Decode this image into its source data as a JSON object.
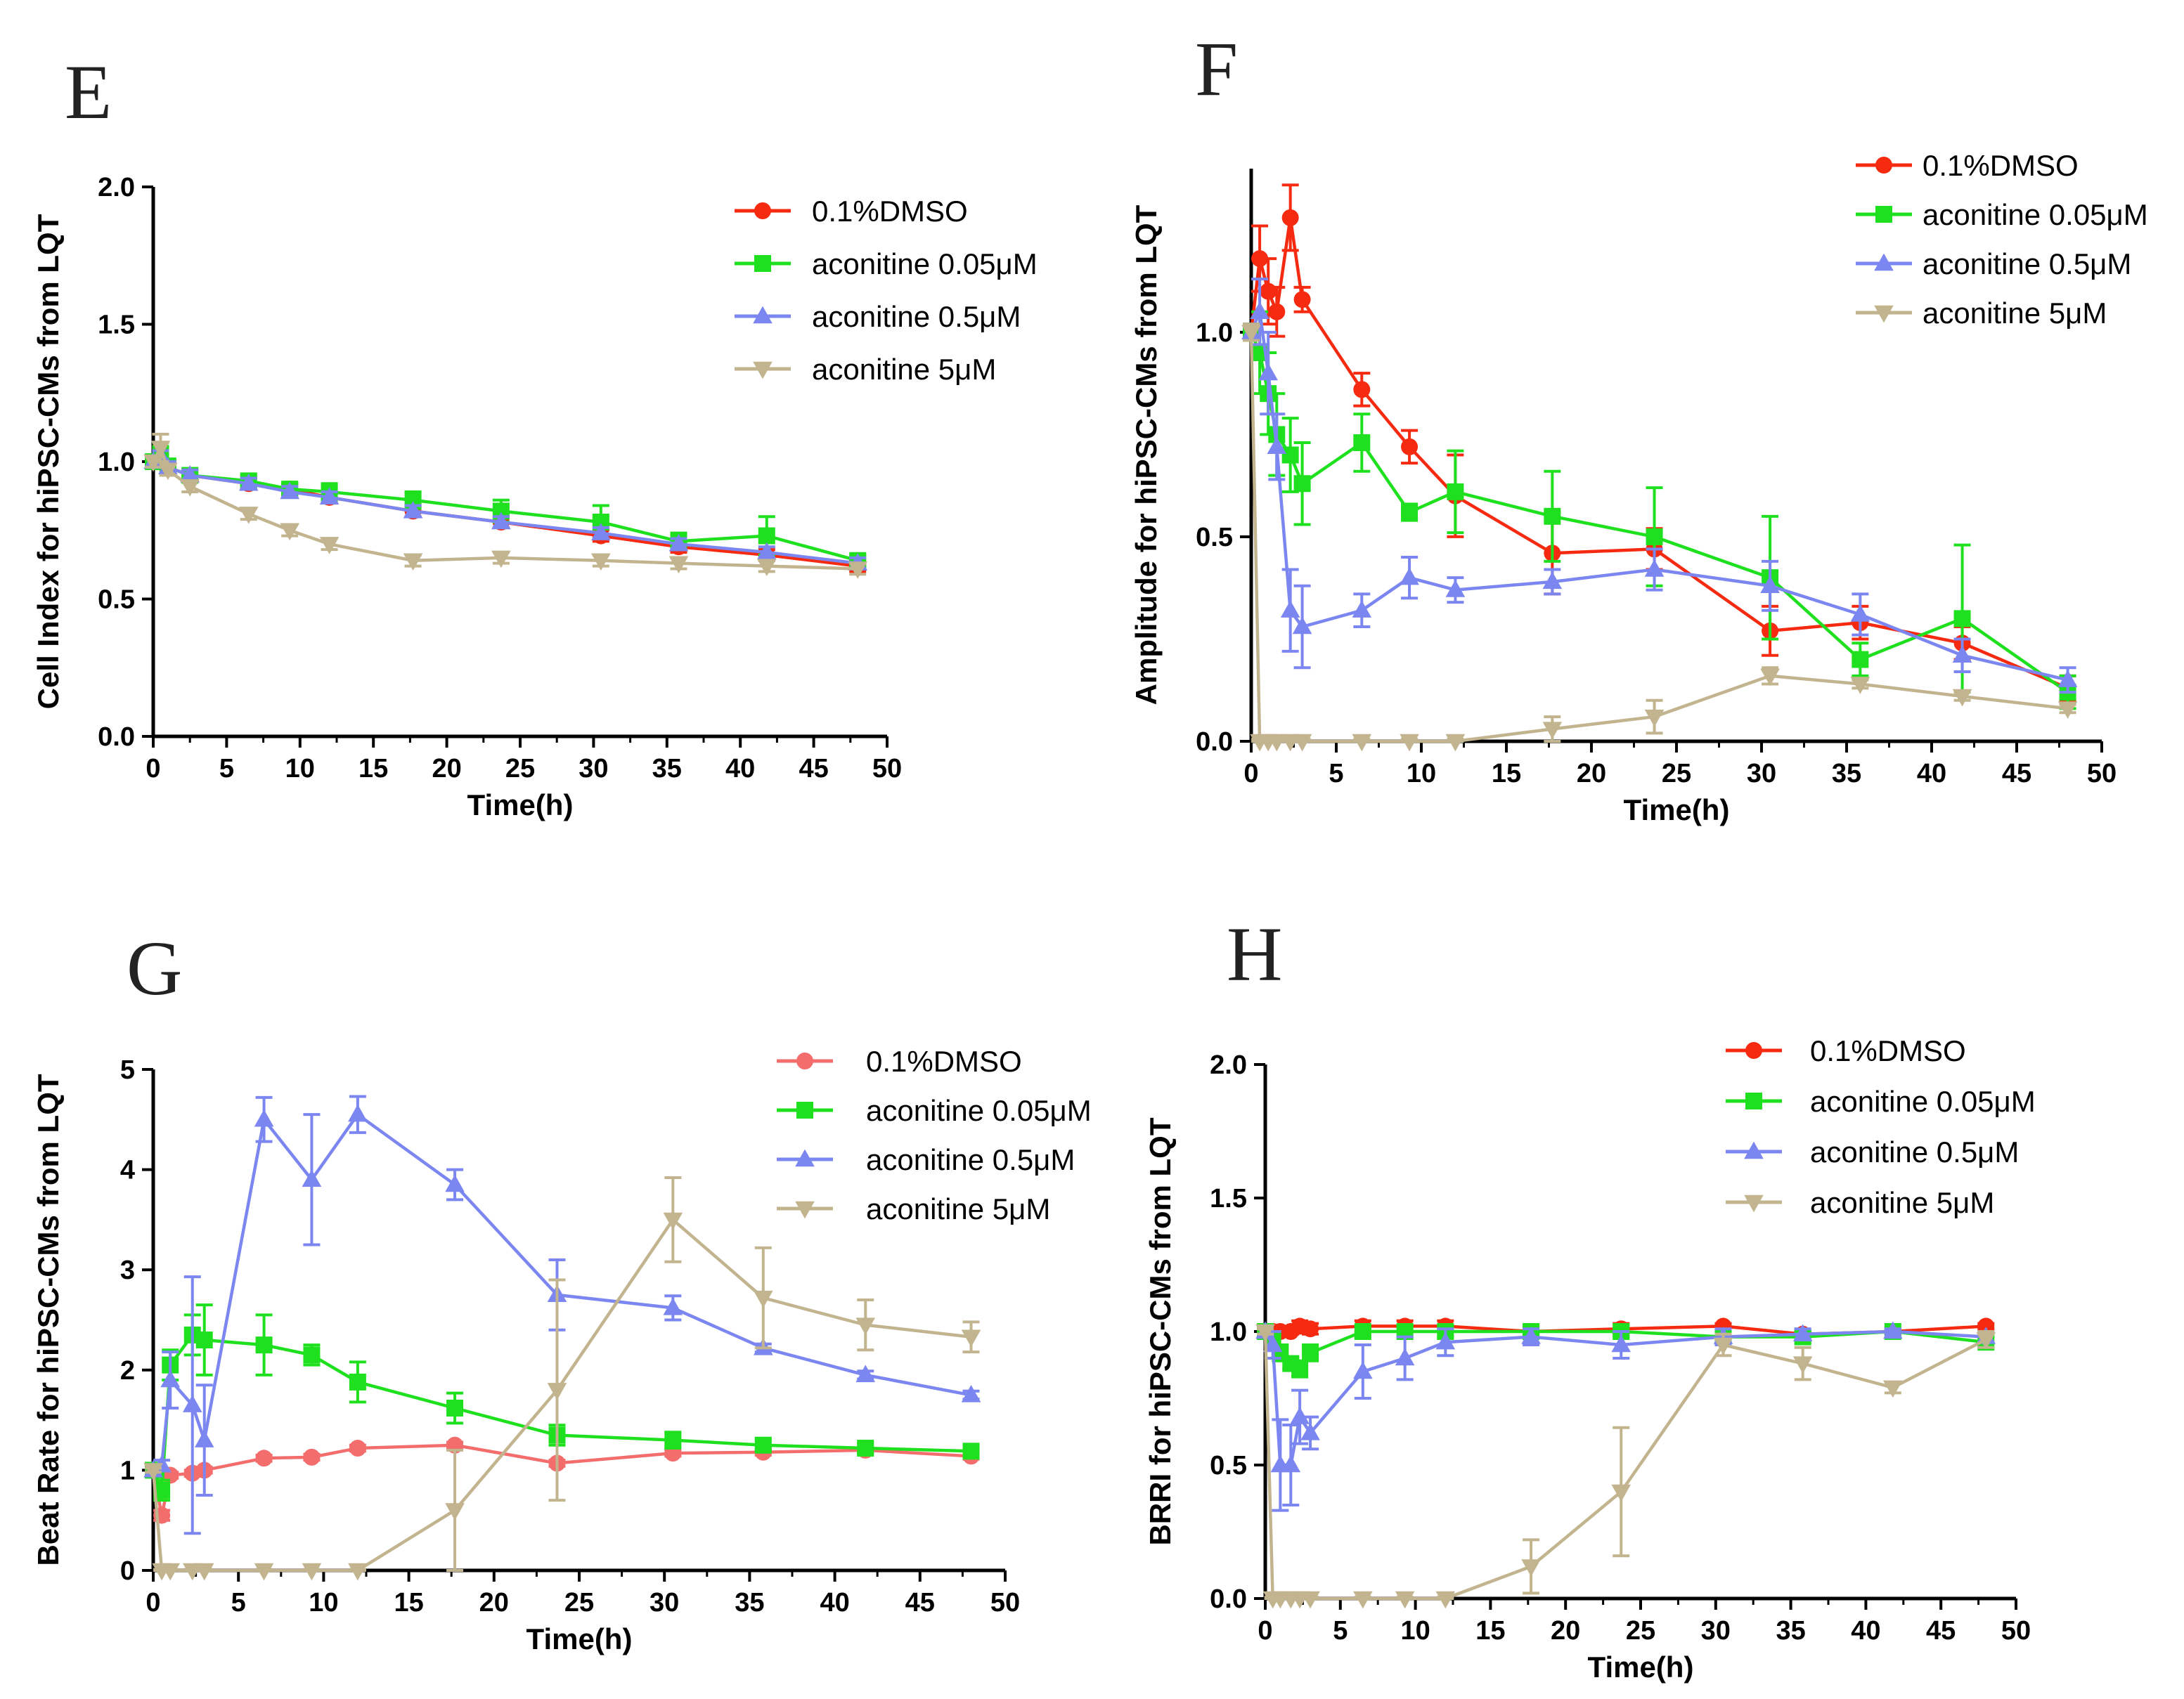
{
  "colors": {
    "dmso_bright": "#f52a10",
    "dmso_salmon": "#f46d6d",
    "low": "#1fe01f",
    "mid": "#7b86f0",
    "high": "#c2b48e",
    "axis": "#000000"
  },
  "chart_data": [
    {
      "panel": "E",
      "type": "line",
      "xlabel": "Time(h)",
      "ylabel": "Cell Index for hiPSC-CMs from LQT",
      "xlim": [
        0,
        50
      ],
      "ylim": [
        0,
        2.0
      ],
      "xticks": [
        0,
        5,
        10,
        15,
        20,
        25,
        30,
        35,
        40,
        45,
        50
      ],
      "yticks": [
        0.0,
        0.5,
        1.0,
        1.5,
        2.0
      ],
      "xtick_labels": [
        "0",
        "5",
        "10",
        "15",
        "20",
        "25",
        "30",
        "35",
        "40",
        "45",
        "50"
      ],
      "ytick_labels": [
        "0.0",
        "0.5",
        "1.0",
        "1.5",
        "2.0"
      ],
      "legend_position": "top-right",
      "series": [
        {
          "name": "0.1%DMSO",
          "color_key": "dmso_bright",
          "marker": "circle",
          "x": [
            0,
            0.5,
            1,
            2.5,
            6.5,
            9.3,
            12,
            17.7,
            23.7,
            30.5,
            35.8,
            41.8,
            48
          ],
          "y": [
            1.0,
            1.02,
            0.98,
            0.95,
            0.92,
            0.9,
            0.87,
            0.82,
            0.78,
            0.73,
            0.69,
            0.66,
            0.62
          ],
          "err": [
            0.02,
            0.03,
            0.02,
            0.02,
            0.02,
            0.02,
            0.02,
            0.02,
            0.02,
            0.02,
            0.02,
            0.02,
            0.02
          ]
        },
        {
          "name": "aconitine 0.05μM",
          "color_key": "low",
          "marker": "square",
          "x": [
            0,
            0.5,
            1,
            2.5,
            6.5,
            9.3,
            12,
            17.7,
            23.7,
            30.5,
            35.8,
            41.8,
            48
          ],
          "y": [
            1.0,
            1.03,
            0.98,
            0.95,
            0.93,
            0.9,
            0.89,
            0.86,
            0.82,
            0.78,
            0.71,
            0.73,
            0.64
          ],
          "err": [
            0.02,
            0.04,
            0.03,
            0.02,
            0.02,
            0.02,
            0.03,
            0.03,
            0.04,
            0.06,
            0.03,
            0.07,
            0.02
          ]
        },
        {
          "name": "aconitine 0.5μM",
          "color_key": "mid",
          "marker": "triangle-up",
          "x": [
            0,
            0.5,
            1,
            2.5,
            6.5,
            9.3,
            12,
            17.7,
            23.7,
            30.5,
            35.8,
            41.8,
            48
          ],
          "y": [
            1.0,
            1.02,
            0.98,
            0.95,
            0.92,
            0.89,
            0.87,
            0.82,
            0.78,
            0.74,
            0.7,
            0.67,
            0.63
          ],
          "err": [
            0.02,
            0.02,
            0.02,
            0.02,
            0.02,
            0.02,
            0.02,
            0.02,
            0.02,
            0.02,
            0.02,
            0.02,
            0.02
          ]
        },
        {
          "name": "aconitine 5μM",
          "color_key": "high",
          "marker": "triangle-down",
          "x": [
            0,
            0.5,
            1,
            2.5,
            6.5,
            9.3,
            12,
            17.7,
            23.7,
            30.5,
            35.8,
            41.8,
            48
          ],
          "y": [
            1.0,
            1.05,
            0.97,
            0.91,
            0.81,
            0.75,
            0.7,
            0.64,
            0.65,
            0.64,
            0.63,
            0.62,
            0.61
          ],
          "err": [
            0.02,
            0.05,
            0.02,
            0.02,
            0.02,
            0.02,
            0.02,
            0.02,
            0.02,
            0.02,
            0.02,
            0.02,
            0.02
          ]
        }
      ]
    },
    {
      "panel": "F",
      "type": "line",
      "xlabel": "Time(h)",
      "ylabel": "Amplitude for hiPSC-CMs from LQT",
      "xlim": [
        0,
        50
      ],
      "ylim": [
        0,
        1.4
      ],
      "xticks": [
        0,
        5,
        10,
        15,
        20,
        25,
        30,
        35,
        40,
        45,
        50
      ],
      "yticks": [
        0.0,
        0.5,
        1.0
      ],
      "xtick_labels": [
        "0",
        "5",
        "10",
        "15",
        "20",
        "25",
        "30",
        "35",
        "40",
        "45",
        "50"
      ],
      "ytick_labels": [
        "0.0",
        "0.5",
        "1.0"
      ],
      "legend_position": "top-right",
      "series": [
        {
          "name": "0.1%DMSO",
          "color_key": "dmso_bright",
          "marker": "circle",
          "x": [
            0,
            0.5,
            1,
            1.5,
            2.3,
            3,
            6.5,
            9.3,
            12,
            17.7,
            23.7,
            30.5,
            35.8,
            41.8,
            48
          ],
          "y": [
            1.0,
            1.18,
            1.1,
            1.05,
            1.28,
            1.08,
            0.86,
            0.72,
            0.6,
            0.46,
            0.47,
            0.27,
            0.29,
            0.24,
            0.13
          ],
          "err": [
            0.02,
            0.08,
            0.08,
            0.06,
            0.08,
            0.03,
            0.04,
            0.04,
            0.1,
            0.1,
            0.05,
            0.06,
            0.04,
            0.04,
            0.03
          ]
        },
        {
          "name": "aconitine 0.05μM",
          "color_key": "low",
          "marker": "square",
          "x": [
            0,
            0.5,
            1,
            1.5,
            2.3,
            3,
            6.5,
            9.3,
            12,
            17.7,
            23.7,
            30.5,
            35.8,
            41.8,
            48
          ],
          "y": [
            1.0,
            0.95,
            0.85,
            0.75,
            0.7,
            0.63,
            0.73,
            0.56,
            0.61,
            0.55,
            0.5,
            0.4,
            0.2,
            0.3,
            0.12
          ],
          "err": [
            0.02,
            0.1,
            0.1,
            0.1,
            0.09,
            0.1,
            0.07,
            0.02,
            0.1,
            0.11,
            0.12,
            0.15,
            0.04,
            0.18,
            0.04
          ]
        },
        {
          "name": "aconitine 0.5μM",
          "color_key": "mid",
          "marker": "triangle-up",
          "x": [
            0,
            0.5,
            1,
            1.5,
            2.3,
            3,
            6.5,
            9.3,
            12,
            17.7,
            23.7,
            30.5,
            35.8,
            41.8,
            48
          ],
          "y": [
            1.0,
            1.05,
            0.9,
            0.72,
            0.32,
            0.28,
            0.32,
            0.4,
            0.37,
            0.39,
            0.42,
            0.38,
            0.31,
            0.21,
            0.15
          ],
          "err": [
            0.02,
            0.08,
            0.1,
            0.08,
            0.1,
            0.1,
            0.04,
            0.05,
            0.03,
            0.03,
            0.05,
            0.06,
            0.05,
            0.04,
            0.03
          ]
        },
        {
          "name": "aconitine 5μM",
          "color_key": "high",
          "marker": "triangle-down",
          "x": [
            0,
            0.5,
            1,
            1.5,
            2.3,
            3,
            6.5,
            9.3,
            12,
            17.7,
            23.7,
            30.5,
            35.8,
            41.8,
            48
          ],
          "y": [
            1.0,
            0.0,
            0.0,
            0.0,
            0.0,
            0.0,
            0.0,
            0.0,
            0.0,
            0.03,
            0.06,
            0.16,
            0.14,
            0.11,
            0.08
          ],
          "err": [
            0.02,
            0.005,
            0.005,
            0.005,
            0.005,
            0.005,
            0.005,
            0.005,
            0.005,
            0.03,
            0.04,
            0.02,
            0.01,
            0.01,
            0.01
          ]
        }
      ]
    },
    {
      "panel": "G",
      "type": "line",
      "xlabel": "Time(h)",
      "ylabel": "Beat Rate for hiPSC-CMs from LQT",
      "xlim": [
        0,
        50
      ],
      "ylim": [
        0,
        5
      ],
      "xticks": [
        0,
        5,
        10,
        15,
        20,
        25,
        30,
        35,
        40,
        45,
        50
      ],
      "yticks": [
        0,
        1,
        2,
        3,
        4,
        5
      ],
      "xtick_labels": [
        "0",
        "5",
        "10",
        "15",
        "20",
        "25",
        "30",
        "35",
        "40",
        "45",
        "50"
      ],
      "ytick_labels": [
        "0",
        "1",
        "2",
        "3",
        "4",
        "5"
      ],
      "legend_position": "top-right",
      "series": [
        {
          "name": "0.1%DMSO",
          "color_key": "dmso_salmon",
          "marker": "circle",
          "x": [
            0,
            0.5,
            1,
            2.3,
            3,
            6.5,
            9.3,
            12,
            17.7,
            23.7,
            30.5,
            35.8,
            41.8,
            48
          ],
          "y": [
            1.0,
            0.55,
            0.95,
            0.97,
            1.0,
            1.12,
            1.13,
            1.22,
            1.25,
            1.07,
            1.17,
            1.18,
            1.2,
            1.14
          ],
          "err": [
            0.02,
            0.05,
            0.03,
            0.03,
            0.03,
            0.03,
            0.03,
            0.03,
            0.03,
            0.03,
            0.03,
            0.03,
            0.03,
            0.03
          ]
        },
        {
          "name": "aconitine 0.05μM",
          "color_key": "low",
          "marker": "square",
          "x": [
            0,
            0.5,
            1,
            2.3,
            3,
            6.5,
            9.3,
            12,
            17.7,
            23.7,
            30.5,
            35.8,
            41.8,
            48
          ],
          "y": [
            1.0,
            0.8,
            2.05,
            2.35,
            2.3,
            2.25,
            2.15,
            1.88,
            1.62,
            1.35,
            1.3,
            1.25,
            1.22,
            1.19
          ],
          "err": [
            0.02,
            0.1,
            0.15,
            0.2,
            0.35,
            0.3,
            0.1,
            0.2,
            0.15,
            0.1,
            0.08,
            0.05,
            0.05,
            0.05
          ]
        },
        {
          "name": "aconitine 0.5μM",
          "color_key": "mid",
          "marker": "triangle-up",
          "x": [
            0,
            0.5,
            1,
            2.3,
            3,
            6.5,
            9.3,
            12,
            17.7,
            23.7,
            30.5,
            35.8,
            41.8,
            48
          ],
          "y": [
            1.0,
            1.05,
            1.9,
            1.65,
            1.3,
            4.5,
            3.9,
            4.55,
            3.85,
            2.75,
            2.62,
            2.22,
            1.95,
            1.75
          ],
          "err": [
            0.02,
            0.05,
            0.28,
            1.28,
            0.55,
            0.22,
            0.65,
            0.18,
            0.15,
            0.35,
            0.12,
            0.04,
            0.04,
            0.04
          ]
        },
        {
          "name": "aconitine 5μM",
          "color_key": "high",
          "marker": "triangle-down",
          "x": [
            0,
            0.5,
            1,
            2.3,
            3,
            6.5,
            9.3,
            12,
            17.7,
            23.7,
            30.5,
            35.8,
            41.8,
            48
          ],
          "y": [
            1.0,
            0.0,
            0.0,
            0.0,
            0.0,
            0.0,
            0.0,
            0.0,
            0.6,
            1.8,
            3.5,
            2.72,
            2.45,
            2.33
          ],
          "err": [
            0.02,
            0.01,
            0.01,
            0.01,
            0.01,
            0.01,
            0.01,
            0.01,
            0.6,
            1.1,
            0.42,
            0.5,
            0.25,
            0.15
          ]
        }
      ]
    },
    {
      "panel": "H",
      "type": "line",
      "xlabel": "Time(h)",
      "ylabel": "BRRI for hiPSC-CMs from LQT",
      "xlim": [
        0,
        50
      ],
      "ylim": [
        0,
        2.0
      ],
      "xticks": [
        0,
        5,
        10,
        15,
        20,
        25,
        30,
        35,
        40,
        45,
        50
      ],
      "yticks": [
        0.0,
        0.5,
        1.0,
        1.5,
        2.0
      ],
      "xtick_labels": [
        "0",
        "5",
        "10",
        "15",
        "20",
        "25",
        "30",
        "35",
        "40",
        "45",
        "50"
      ],
      "ytick_labels": [
        "0.0",
        "0.5",
        "1.0",
        "1.5",
        "2.0"
      ],
      "legend_position": "top-right",
      "series": [
        {
          "name": "0.1%DMSO",
          "color_key": "dmso_bright",
          "marker": "circle",
          "x": [
            0,
            0.5,
            1,
            1.7,
            2.3,
            3,
            6.5,
            9.3,
            12,
            17.7,
            23.7,
            30.5,
            35.8,
            41.8,
            48
          ],
          "y": [
            1.0,
            1.0,
            1.0,
            1.0,
            1.02,
            1.01,
            1.02,
            1.02,
            1.02,
            1.0,
            1.01,
            1.02,
            0.99,
            1.0,
            1.02
          ],
          "err": [
            0.01,
            0.01,
            0.01,
            0.01,
            0.02,
            0.02,
            0.02,
            0.02,
            0.02,
            0.01,
            0.02,
            0.01,
            0.01,
            0.01,
            0.01
          ]
        },
        {
          "name": "aconitine 0.05μM",
          "color_key": "low",
          "marker": "square",
          "x": [
            0,
            0.5,
            1,
            1.7,
            2.3,
            3,
            6.5,
            9.3,
            12,
            17.7,
            23.7,
            30.5,
            35.8,
            41.8,
            48
          ],
          "y": [
            1.0,
            0.97,
            0.92,
            0.88,
            0.86,
            0.92,
            1.0,
            1.0,
            1.0,
            1.0,
            1.0,
            0.98,
            0.98,
            1.0,
            0.96
          ],
          "err": [
            0.01,
            0.03,
            0.03,
            0.02,
            0.03,
            0.03,
            0.02,
            0.02,
            0.02,
            0.01,
            0.02,
            0.02,
            0.02,
            0.01,
            0.02
          ]
        },
        {
          "name": "aconitine 0.5μM",
          "color_key": "mid",
          "marker": "triangle-up",
          "x": [
            0,
            0.5,
            1,
            1.7,
            2.3,
            3,
            6.5,
            9.3,
            12,
            17.7,
            23.7,
            30.5,
            35.8,
            41.8,
            48
          ],
          "y": [
            1.0,
            0.95,
            0.5,
            0.5,
            0.68,
            0.62,
            0.85,
            0.9,
            0.96,
            0.98,
            0.95,
            0.98,
            0.99,
            1.0,
            0.98
          ],
          "err": [
            0.01,
            0.05,
            0.17,
            0.15,
            0.1,
            0.06,
            0.1,
            0.08,
            0.05,
            0.03,
            0.05,
            0.03,
            0.02,
            0.01,
            0.02
          ]
        },
        {
          "name": "aconitine 5μM",
          "color_key": "high",
          "marker": "triangle-down",
          "x": [
            0,
            0.5,
            1,
            1.7,
            2.3,
            3,
            6.5,
            9.3,
            12,
            17.7,
            23.7,
            30.5,
            35.8,
            41.8,
            48
          ],
          "y": [
            1.0,
            0.0,
            0.0,
            0.0,
            0.0,
            0.0,
            0.0,
            0.0,
            0.0,
            0.12,
            0.4,
            0.95,
            0.88,
            0.79,
            0.97
          ],
          "err": [
            0.01,
            0.005,
            0.005,
            0.005,
            0.005,
            0.005,
            0.005,
            0.005,
            0.005,
            0.1,
            0.24,
            0.04,
            0.06,
            0.02,
            0.03
          ]
        }
      ]
    }
  ]
}
